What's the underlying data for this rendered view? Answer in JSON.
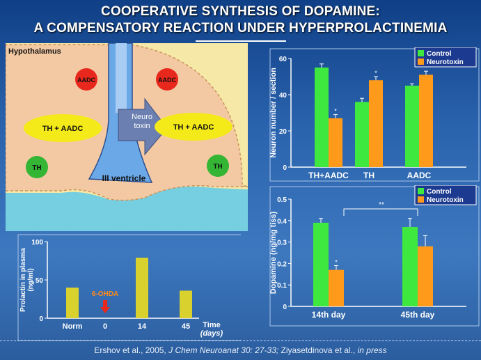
{
  "title_line1": "COOPERATIVE SYNTHESIS OF DOPAMINE:",
  "title_line2": "A COMPENSATORY REACTION UNDER HYPERPROLACTINEMIA",
  "footer": {
    "part1": "Ershov et al., 2005, ",
    "part2": "J Chem Neuroanat 30: 27-33;",
    "part3": " Ziyasetdinova et al., ",
    "part4": "in press"
  },
  "diagram": {
    "region_label": "Hypothalamus",
    "aadc_left": "AADC",
    "aadc_right": "AADC",
    "th_aadc_left": "TH + AADC",
    "th_aadc_right": "TH + AADC",
    "th_left": "TH",
    "th_right": "TH",
    "neurotoxin_line1": "Neuro",
    "neurotoxin_line2": "toxin",
    "ventricle": "III ventricle",
    "colors": {
      "aadc": "#e8281c",
      "th_aadc": "#f4ea1a",
      "th": "#34b534",
      "ventricle": "#6aa8e8",
      "tissue": "#f6e8a6",
      "csf": "#76cfe0"
    }
  },
  "chart_data": [
    {
      "type": "bar",
      "ylabel": "Prolactin in plasma (ng/ml)",
      "xlabel": "Time (days)",
      "categories": [
        "Norm",
        "0",
        "14",
        "45"
      ],
      "values": [
        40,
        null,
        79,
        36
      ],
      "ylim": [
        0,
        100
      ],
      "yticks": [
        "0",
        "50",
        "100"
      ],
      "annotation": "6-OHDA",
      "color": "#d9d22e"
    },
    {
      "type": "bar",
      "ylabel": "Neuron number / section",
      "categories": [
        "TH+AADC",
        "TH",
        "AADC"
      ],
      "series": [
        {
          "name": "Control",
          "values": [
            55,
            36,
            45
          ],
          "errors": [
            2,
            2,
            1
          ],
          "color": "#3ee83e"
        },
        {
          "name": "Neurotoxin",
          "values": [
            27,
            48,
            51
          ],
          "errors": [
            2,
            2,
            2
          ],
          "color": "#ff9a1a"
        }
      ],
      "significance": [
        "*",
        "*",
        "*"
      ],
      "ylim": [
        0,
        60
      ],
      "yticks": [
        "0",
        "20",
        "40",
        "60"
      ],
      "legend": "top-right"
    },
    {
      "type": "bar",
      "ylabel": "Dopamine (ng/mg tiss)",
      "categories": [
        "14th day",
        "45th day"
      ],
      "series": [
        {
          "name": "Control",
          "values": [
            0.39,
            0.37
          ],
          "errors": [
            0.02,
            0.04
          ],
          "color": "#3ee83e"
        },
        {
          "name": "Neurotoxin",
          "values": [
            0.17,
            0.28
          ],
          "errors": [
            0.02,
            0.05
          ],
          "color": "#ff9a1a"
        }
      ],
      "significance": [
        "*"
      ],
      "bracket_label": "**",
      "ylim": [
        0,
        0.5
      ],
      "yticks": [
        "0",
        "0.1",
        "0.2",
        "0.3",
        "0.4",
        "0.5"
      ],
      "legend": "top-right"
    }
  ]
}
